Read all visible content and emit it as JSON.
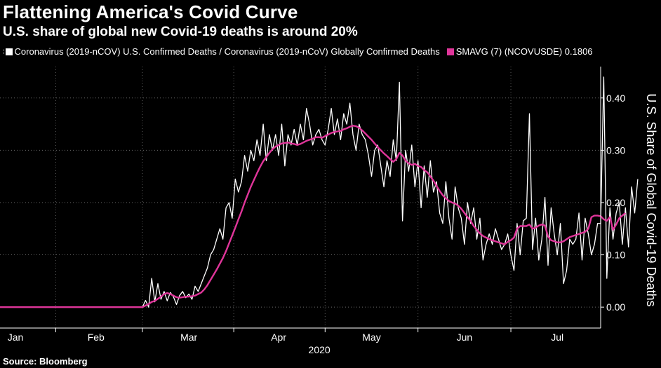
{
  "title": "Flattening America's Covid Curve",
  "subtitle": "U.S. share of global new Covid-19 deaths is around 20%",
  "legend": [
    {
      "label": "Coronavirus (2019-nCOV) U.S. Confirmed Deaths / Coronavirus (2019-nCoV) Globally Confirmed Deaths",
      "color": "#ffffff"
    },
    {
      "label": "SMAVG (7)  (NCOVUSDE)  0.1806",
      "color": "#e0359a"
    }
  ],
  "source": "Source: Bloomberg",
  "chart_data": {
    "type": "line",
    "title": "Flattening America's Covid Curve",
    "ylabel": "U.S. Share of Global Covid-19 Deaths",
    "xlabel": "2020",
    "year_label": "2020",
    "ylim": [
      -0.04,
      0.46
    ],
    "y_ticks": [
      0.0,
      0.1,
      0.2,
      0.3,
      0.4
    ],
    "y_tick_labels": [
      "0.00",
      "0.10",
      "0.20",
      "0.30",
      "0.40"
    ],
    "x_start": "2020-01-12",
    "x_end": "2020-07-24",
    "x_ticks": [
      {
        "label": "Jan",
        "date": "2020-01-17"
      },
      {
        "label": "Feb",
        "date": "2020-02-12"
      },
      {
        "label": "Mar",
        "date": "2020-03-13"
      },
      {
        "label": "Apr",
        "date": "2020-04-11"
      },
      {
        "label": "May",
        "date": "2020-05-11"
      },
      {
        "label": "Jun",
        "date": "2020-06-10"
      },
      {
        "label": "Jul",
        "date": "2020-07-10"
      }
    ],
    "series": [
      {
        "name": "Coronavirus (2019-nCOV) U.S. Confirmed Deaths / Coronavirus (2019-nCoV) Globally Confirmed Deaths",
        "color": "#ffffff",
        "start": "2020-01-12",
        "step_days": 1,
        "values": [
          0,
          0,
          0,
          0,
          0,
          0,
          0,
          0,
          0,
          0,
          0,
          0,
          0,
          0,
          0,
          0,
          0,
          0,
          0,
          0,
          0,
          0,
          0,
          0,
          0,
          0,
          0,
          0,
          0,
          0,
          0,
          0,
          0,
          0,
          0,
          0,
          0,
          0,
          0,
          0,
          0,
          0,
          0,
          0,
          0,
          0,
          0,
          0.013,
          0,
          0.055,
          0.01,
          0.045,
          0.015,
          0.03,
          0.012,
          0.028,
          0.02,
          0.005,
          0.022,
          0.03,
          0.018,
          0.025,
          0.015,
          0.04,
          0.03,
          0.045,
          0.06,
          0.075,
          0.1,
          0.11,
          0.13,
          0.15,
          0.13,
          0.19,
          0.2,
          0.17,
          0.245,
          0.22,
          0.24,
          0.29,
          0.26,
          0.3,
          0.28,
          0.32,
          0.29,
          0.35,
          0.28,
          0.33,
          0.3,
          0.33,
          0.29,
          0.35,
          0.27,
          0.33,
          0.31,
          0.34,
          0.31,
          0.35,
          0.32,
          0.38,
          0.35,
          0.31,
          0.33,
          0.34,
          0.32,
          0.31,
          0.34,
          0.38,
          0.33,
          0.36,
          0.32,
          0.37,
          0.35,
          0.39,
          0.33,
          0.3,
          0.35,
          0.33,
          0.32,
          0.29,
          0.25,
          0.3,
          0.31,
          0.27,
          0.23,
          0.28,
          0.25,
          0.32,
          0.28,
          0.43,
          0.165,
          0.3,
          0.26,
          0.31,
          0.23,
          0.28,
          0.19,
          0.27,
          0.21,
          0.28,
          0.22,
          0.24,
          0.18,
          0.16,
          0.24,
          0.17,
          0.13,
          0.23,
          0.19,
          0.17,
          0.12,
          0.2,
          0.16,
          0.19,
          0.13,
          0.17,
          0.09,
          0.12,
          0.14,
          0.12,
          0.15,
          0.13,
          0.11,
          0.12,
          0.14,
          0.1,
          0.07,
          0.16,
          0.1,
          0.165,
          0.17,
          0.37,
          0.11,
          0.17,
          0.09,
          0.13,
          0.21,
          0.08,
          0.19,
          0.14,
          0.1,
          0.16,
          0.045,
          0.07,
          0.13,
          0.12,
          0.13,
          0.18,
          0.09,
          0.17,
          0.14,
          0.1,
          0.12,
          0.16,
          0.16,
          0.44,
          0.055,
          0.19,
          0.13,
          0.18,
          0.2,
          0.12,
          0.19,
          0.115,
          0.23,
          0.18,
          0.245
        ]
      },
      {
        "name": "SMAVG (7)  (NCOVUSDE)  0.1806",
        "color": "#e0359a",
        "start": "2020-01-12",
        "step_days": 1,
        "values": [
          0,
          0,
          0,
          0,
          0,
          0,
          0,
          0,
          0,
          0,
          0,
          0,
          0,
          0,
          0,
          0,
          0,
          0,
          0,
          0,
          0,
          0,
          0,
          0,
          0,
          0,
          0,
          0,
          0,
          0,
          0,
          0,
          0,
          0,
          0,
          0,
          0,
          0,
          0,
          0,
          0,
          0,
          0,
          0,
          0,
          0,
          0,
          0.003,
          0.006,
          0.01,
          0.012,
          0.016,
          0.02,
          0.025,
          0.027,
          0.025,
          0.022,
          0.019,
          0.018,
          0.019,
          0.02,
          0.02,
          0.021,
          0.022,
          0.025,
          0.028,
          0.034,
          0.042,
          0.052,
          0.062,
          0.072,
          0.083,
          0.094,
          0.107,
          0.122,
          0.137,
          0.152,
          0.168,
          0.183,
          0.2,
          0.215,
          0.23,
          0.243,
          0.256,
          0.268,
          0.279,
          0.287,
          0.295,
          0.302,
          0.307,
          0.31,
          0.313,
          0.314,
          0.315,
          0.313,
          0.312,
          0.31,
          0.312,
          0.315,
          0.318,
          0.32,
          0.322,
          0.325,
          0.325,
          0.324,
          0.327,
          0.33,
          0.333,
          0.335,
          0.336,
          0.337,
          0.34,
          0.342,
          0.345,
          0.347,
          0.346,
          0.343,
          0.338,
          0.332,
          0.326,
          0.32,
          0.313,
          0.306,
          0.3,
          0.294,
          0.289,
          0.283,
          0.278,
          0.283,
          0.295,
          0.29,
          0.28,
          0.275,
          0.272,
          0.274,
          0.27,
          0.268,
          0.262,
          0.258,
          0.25,
          0.242,
          0.232,
          0.222,
          0.214,
          0.208,
          0.203,
          0.2,
          0.198,
          0.194,
          0.188,
          0.18,
          0.172,
          0.165,
          0.155,
          0.148,
          0.141,
          0.136,
          0.133,
          0.13,
          0.128,
          0.126,
          0.124,
          0.122,
          0.12,
          0.125,
          0.128,
          0.133,
          0.15,
          0.155,
          0.155,
          0.155,
          0.158,
          0.15,
          0.152,
          0.156,
          0.158,
          0.156,
          0.135,
          0.128,
          0.126,
          0.124,
          0.124,
          0.126,
          0.13,
          0.134,
          0.136,
          0.138,
          0.14,
          0.142,
          0.144,
          0.15,
          0.172,
          0.175,
          0.175,
          0.174,
          0.168,
          0.165,
          0.172,
          0.148,
          0.158,
          0.17,
          0.175,
          0.18
        ]
      }
    ]
  }
}
